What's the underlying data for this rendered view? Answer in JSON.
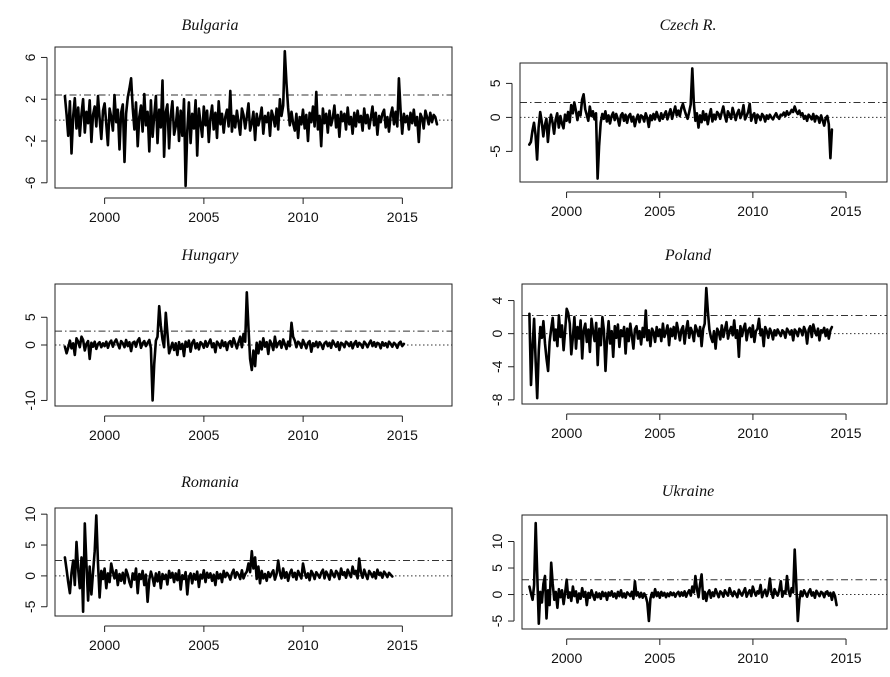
{
  "chart_data": [
    {
      "type": "line",
      "title": "Bulgaria",
      "xticks": [
        2000,
        2005,
        2010,
        2015
      ],
      "yticks": [
        -6,
        -2,
        2,
        6
      ],
      "xlim": [
        1997.5,
        2017.5
      ],
      "ylim": [
        -6.5,
        7
      ],
      "reference_lines": [
        0,
        2.4
      ],
      "x_start": 1998.0,
      "x_step": 0.0833,
      "values": [
        2.3,
        0.5,
        -1.5,
        1.8,
        -3.2,
        0.4,
        2.1,
        -0.8,
        1.2,
        -1.5,
        0.6,
        2.0,
        -1.2,
        0.8,
        -0.3,
        1.9,
        -2.1,
        0.5,
        1.3,
        -0.6,
        2.3,
        0.2,
        -1.8,
        0.9,
        1.6,
        -0.4,
        -2.4,
        1.1,
        0.3,
        -1.0,
        2.4,
        -0.2,
        1.0,
        -2.8,
        0.7,
        1.5,
        -4.0,
        0.6,
        2.2,
        3.0,
        4.0,
        1.2,
        -0.9,
        1.7,
        -2.5,
        0.3,
        1.4,
        -1.1,
        2.5,
        -0.5,
        0.8,
        -3.0,
        1.9,
        -1.6,
        0.4,
        2.3,
        -2.2,
        1.0,
        -0.7,
        3.8,
        -3.5,
        0.8,
        1.5,
        -2.7,
        0.4,
        1.8,
        -1.4,
        -0.6,
        1.2,
        -2.0,
        0.9,
        -1.5,
        2.0,
        -6.3,
        -1.0,
        1.7,
        -2.2,
        0.6,
        -0.8,
        1.9,
        -3.4,
        1.1,
        -0.3,
        -1.6,
        1.3,
        -0.5,
        0.9,
        -2.1,
        0.2,
        1.4,
        -0.9,
        0.7,
        -1.7,
        1.8,
        -0.4,
        0.6,
        -1.2,
        0.3,
        1.0,
        -0.6,
        2.8,
        -1.1,
        0.4,
        -0.7,
        0.9,
        -0.2,
        -1.4,
        1.1,
        0.5,
        -0.8,
        0.3,
        1.6,
        -1.0,
        -0.3,
        0.8,
        -1.9,
        0.6,
        -0.5,
        0.2,
        1.2,
        -1.3,
        0.4,
        -0.2,
        0.7,
        -1.5,
        0.9,
        0.3,
        -0.6,
        1.1,
        -0.9,
        2.0,
        0.4,
        1.4,
        6.6,
        3.5,
        1.2,
        -0.5,
        0.8,
        -0.3,
        -1.0,
        0.6,
        -1.7,
        0.3,
        -0.4,
        1.0,
        -0.8,
        0.5,
        -2.0,
        0.7,
        -0.2,
        1.3,
        -0.6,
        2.7,
        -0.9,
        0.4,
        -2.5,
        1.1,
        -0.3,
        0.6,
        -1.2,
        0.9,
        -0.5,
        0.2,
        1.4,
        -0.7,
        0.5,
        -1.6,
        0.8,
        -0.1,
        0.6,
        -0.9,
        1.2,
        -0.4,
        0.3,
        -1.3,
        0.7,
        -0.6,
        0.9,
        -0.2,
        0.4,
        -1.0,
        1.1,
        -0.3,
        0.5,
        -0.8,
        0.2,
        1.3,
        -0.5,
        0.7,
        -1.4,
        0.4,
        -0.2,
        0.6,
        1.0,
        -0.7,
        0.3,
        -1.1,
        0.5,
        1.2,
        -0.4,
        0.8,
        -0.6,
        4.0,
        0.9,
        -1.3,
        0.6,
        -0.2,
        0.4,
        -0.9,
        0.7,
        -0.3,
        1.0,
        -0.5,
        0.3,
        -2.1,
        0.6,
        0.2,
        -0.8,
        0.9,
        0.3,
        -0.4,
        0.7,
        -0.2,
        0.5,
        0.3,
        -0.4
      ]
    },
    {
      "type": "line",
      "title": "Czech R.",
      "xticks": [
        2000,
        2005,
        2010,
        2015
      ],
      "yticks": [
        -5,
        0,
        5
      ],
      "xlim": [
        1997.5,
        2017.2
      ],
      "ylim": [
        -9.5,
        8
      ],
      "reference_lines": [
        0,
        2.2
      ],
      "x_start": 1998.0,
      "x_step": 0.0833,
      "values": [
        -4.0,
        -3.6,
        -2.0,
        -0.8,
        -2.5,
        -6.2,
        -1.5,
        0.8,
        -0.6,
        -2.8,
        -1.2,
        -0.2,
        -3.6,
        -1.0,
        0.4,
        -0.8,
        -2.4,
        -0.3,
        0.6,
        -1.5,
        0.2,
        -0.9,
        -1.6,
        0.4,
        -0.5,
        0.8,
        -0.7,
        1.8,
        0.6,
        2.2,
        1.0,
        -0.4,
        0.8,
        0.3,
        2.6,
        3.4,
        1.2,
        0.4,
        -0.5,
        1.6,
        0.2,
        0.9,
        -0.3,
        0.6,
        -9.0,
        -4.2,
        -0.8,
        0.5,
        -0.2,
        0.9,
        -0.6,
        0.3,
        -0.9,
        0.2,
        0.7,
        -0.4,
        0.5,
        -0.2,
        -1.2,
        0.3,
        0.6,
        -0.5,
        0.4,
        -0.8,
        0.2,
        0.5,
        -0.6,
        0.1,
        -1.3,
        -0.2,
        0.4,
        -0.7,
        0.3,
        0.1,
        -0.6,
        0.6,
        -0.1,
        -1.4,
        0.3,
        -0.4,
        0.5,
        -0.3,
        0.8,
        0.1,
        -0.5,
        0.6,
        -0.2,
        0.4,
        0.9,
        -0.3,
        0.5,
        1.2,
        -0.2,
        0.7,
        1.6,
        0.3,
        1.0,
        0.2,
        1.4,
        2.0,
        1.1,
        0.4,
        -0.2,
        0.8,
        1.9,
        7.2,
        2.2,
        -0.5,
        0.6,
        -1.5,
        0.3,
        -0.7,
        0.9,
        -0.4,
        0.5,
        -1.0,
        0.2,
        1.2,
        -0.6,
        0.4,
        -0.3,
        0.8,
        0.5,
        -0.2,
        0.7,
        1.6,
        0.3,
        -0.6,
        0.9,
        0.4,
        -0.2,
        1.4,
        0.5,
        -0.4,
        0.6,
        1.1,
        -0.1,
        0.5,
        1.8,
        -0.3,
        0.2,
        0.8,
        2.0,
        -0.5,
        0.3,
        0.6,
        -0.8,
        0.4,
        0.1,
        -0.4,
        0.5,
        0.2,
        -0.6,
        0.3,
        -0.2,
        0.4,
        0.0,
        -0.3,
        0.2,
        0.6,
        0.1,
        -0.2,
        0.4,
        0.3,
        0.7,
        0.2,
        0.9,
        0.4,
        0.6,
        1.1,
        0.8,
        1.6,
        0.9,
        0.5,
        1.0,
        0.3,
        0.6,
        -0.2,
        0.2,
        -0.5,
        0.4,
        0.1,
        -0.3,
        0.5,
        -0.6,
        0.2,
        0.0,
        -0.8,
        0.3,
        -0.4,
        -1.2,
        -0.1,
        0.2,
        -1.0,
        -6.0,
        -1.8
      ]
    },
    {
      "type": "line",
      "title": "Hungary",
      "xticks": [
        2000,
        2005,
        2010,
        2015
      ],
      "yticks": [
        -10,
        0,
        5
      ],
      "xlim": [
        1997.5,
        2017.5
      ],
      "ylim": [
        -11,
        11
      ],
      "reference_lines": [
        0,
        2.5
      ],
      "x_start": 1998.0,
      "x_step": 0.0833,
      "values": [
        -0.3,
        -1.5,
        -0.5,
        0.8,
        -0.6,
        0.3,
        -1.8,
        1.2,
        0.6,
        -0.4,
        1.5,
        0.9,
        -1.0,
        0.2,
        0.7,
        -2.5,
        0.4,
        -0.3,
        0.6,
        -0.7,
        0.2,
        0.5,
        -0.4,
        0.3,
        -0.2,
        0.6,
        -0.5,
        0.4,
        0.8,
        -0.3,
        0.5,
        1.0,
        0.2,
        -0.6,
        0.7,
        0.3,
        -0.4,
        0.9,
        -0.2,
        0.5,
        -1.1,
        0.4,
        0.6,
        -0.3,
        0.8,
        1.2,
        -0.5,
        0.3,
        0.7,
        -0.2,
        0.4,
        0.9,
        -0.6,
        -10.0,
        -3.5,
        0.8,
        1.5,
        7.0,
        3.5,
        1.0,
        -0.4,
        5.8,
        2.2,
        -1.5,
        -0.6,
        0.4,
        -0.9,
        0.3,
        -1.8,
        0.5,
        -0.7,
        0.2,
        -2.0,
        0.6,
        -0.3,
        0.8,
        -1.2,
        0.4,
        0.9,
        -0.6,
        0.3,
        -0.8,
        0.5,
        0.2,
        -0.5,
        0.7,
        -0.3,
        0.4,
        1.0,
        -0.4,
        0.3,
        -1.3,
        0.6,
        0.2,
        -0.5,
        0.8,
        -0.2,
        0.5,
        -0.9,
        0.4,
        0.7,
        -0.3,
        1.2,
        0.3,
        -0.6,
        0.5,
        1.5,
        -0.4,
        2.0,
        0.6,
        9.5,
        3.0,
        -2.5,
        -4.5,
        -1.0,
        -3.8,
        0.4,
        -1.5,
        0.6,
        -0.8,
        1.2,
        -0.3,
        0.5,
        -1.6,
        0.8,
        0.2,
        -0.9,
        1.5,
        -0.4,
        0.3,
        0.7,
        -0.5,
        1.0,
        0.2,
        -0.7,
        0.6,
        -0.2,
        4.0,
        1.5,
        0.8,
        -0.4,
        0.6,
        0.3,
        -0.5,
        0.9,
        0.2,
        -0.6,
        0.4,
        0.7,
        -1.2,
        0.3,
        -0.2,
        0.6,
        -0.4,
        0.5,
        0.1,
        -0.7,
        0.3,
        0.6,
        -0.2,
        0.4,
        -0.5,
        0.8,
        0.2,
        -0.3,
        0.5,
        -0.9,
        0.4,
        0.2,
        -0.4,
        0.6,
        0.3,
        -0.2,
        0.5,
        -0.6,
        0.3,
        0.7,
        -0.3,
        0.4,
        0.1,
        -0.5,
        0.6,
        0.2,
        -0.4,
        0.3,
        0.8,
        -0.2,
        0.5,
        -0.3,
        0.4,
        0.2,
        -0.6,
        0.5,
        -0.1,
        0.3,
        -0.4,
        0.6,
        0.2,
        -0.3,
        0.4,
        0.1,
        -0.5,
        0.3,
        0.6,
        -0.2,
        0.2
      ]
    },
    {
      "type": "line",
      "title": "Poland",
      "xticks": [
        2000,
        2005,
        2010,
        2015
      ],
      "yticks": [
        -8,
        -4,
        0,
        4
      ],
      "xlim": [
        1997.6,
        2017.2
      ],
      "ylim": [
        -8.5,
        6
      ],
      "reference_lines": [
        0,
        2.2
      ],
      "x_start": 1998.0,
      "x_step": 0.0833,
      "values": [
        2.4,
        -6.2,
        -1.5,
        1.8,
        -3.5,
        -7.8,
        -2.0,
        0.8,
        -0.5,
        1.5,
        -1.2,
        -3.0,
        -4.5,
        -1.0,
        0.6,
        1.9,
        -0.8,
        0.5,
        -1.5,
        2.2,
        -0.4,
        1.0,
        -2.0,
        0.3,
        3.0,
        2.5,
        1.2,
        -2.5,
        -0.4,
        2.0,
        -1.8,
        0.8,
        -0.6,
        1.6,
        -3.0,
        0.4,
        1.2,
        -1.0,
        0.5,
        -2.2,
        1.8,
        0.2,
        -0.9,
        1.3,
        -3.8,
        0.6,
        -1.4,
        2.0,
        0.4,
        -4.5,
        -0.8,
        1.5,
        -1.2,
        0.3,
        -2.8,
        0.9,
        -0.5,
        1.1,
        -1.6,
        0.4,
        -0.3,
        0.8,
        -2.4,
        0.6,
        -0.9,
        1.2,
        -0.2,
        -1.8,
        0.5,
        0.9,
        -0.6,
        0.3,
        -1.3,
        0.7,
        -0.4,
        2.8,
        -0.8,
        0.4,
        -1.5,
        0.6,
        0.2,
        -1.0,
        0.8,
        -0.3,
        0.5,
        -0.9,
        1.2,
        -0.4,
        0.2,
        1.0,
        -1.4,
        0.6,
        -0.3,
        0.8,
        -0.6,
        1.3,
        0.3,
        -0.8,
        0.5,
        0.9,
        -1.2,
        0.4,
        1.5,
        -0.5,
        0.7,
        0.2,
        -0.9,
        1.0,
        0.4,
        -0.3,
        0.8,
        -1.5,
        0.6,
        1.2,
        5.5,
        2.8,
        0.5,
        -0.4,
        -1.0,
        0.3,
        -1.8,
        0.6,
        0.2,
        -0.7,
        1.0,
        -0.4,
        0.5,
        1.4,
        -0.6,
        0.3,
        0.8,
        -0.2,
        1.6,
        -0.5,
        0.4,
        -2.8,
        0.9,
        -0.3,
        0.6,
        1.2,
        -0.8,
        0.4,
        0.7,
        -0.4,
        1.0,
        -1.0,
        0.3,
        0.6,
        1.8,
        -0.2,
        0.5,
        -1.5,
        0.8,
        0.3,
        -0.5,
        0.6,
        0.2,
        -0.7,
        0.4,
        -0.2,
        0.5,
        0.1,
        -0.3,
        0.4,
        0.2,
        -0.5,
        0.6,
        0.3,
        -0.1,
        0.4,
        -0.8,
        0.5,
        0.2,
        -0.3,
        0.6,
        0.4,
        -0.2,
        0.8,
        0.3,
        -1.2,
        0.5,
        0.9,
        -0.4,
        1.1,
        0.3,
        -0.2,
        0.6,
        -0.8,
        0.4,
        0.2,
        0.7,
        -0.3,
        0.5,
        -0.6,
        0.4,
        0.8
      ]
    },
    {
      "type": "line",
      "title": "Romania",
      "xticks": [
        2000,
        2005,
        2010,
        2015
      ],
      "yticks": [
        -5,
        0,
        5,
        10
      ],
      "xlim": [
        1997.5,
        2017.5
      ],
      "ylim": [
        -6.5,
        11
      ],
      "reference_lines": [
        0,
        2.5
      ],
      "x_start": 1998.0,
      "x_step": 0.0833,
      "values": [
        3.0,
        1.0,
        -1.0,
        -2.8,
        0.5,
        2.5,
        -1.5,
        5.5,
        1.0,
        -2.0,
        3.0,
        -5.8,
        8.5,
        2.0,
        -4.0,
        1.5,
        -3.0,
        0.5,
        4.0,
        9.8,
        2.0,
        -3.5,
        0.8,
        -0.5,
        1.2,
        -2.0,
        0.4,
        -1.0,
        2.0,
        0.6,
        -0.4,
        0.9,
        -1.5,
        0.3,
        -0.8,
        0.5,
        -1.2,
        1.0,
        0.2,
        -1.0,
        -1.8,
        0.4,
        -0.6,
        1.2,
        -2.8,
        0.3,
        -0.5,
        0.8,
        -1.5,
        0.2,
        -4.2,
        -0.6,
        0.7,
        -0.3,
        -1.6,
        0.4,
        -0.9,
        0.6,
        -2.0,
        0.3,
        -0.5,
        0.2,
        -1.4,
        0.8,
        -0.3,
        0.5,
        -1.0,
        0.4,
        -0.7,
        0.9,
        -2.2,
        0.1,
        -0.5,
        0.6,
        -3.0,
        -0.2,
        0.4,
        -1.2,
        0.3,
        -0.6,
        0.7,
        -1.8,
        0.2,
        -0.4,
        0.9,
        -1.0,
        0.5,
        -0.3,
        0.4,
        -0.8,
        0.2,
        -1.5,
        0.6,
        -0.4,
        0.3,
        -1.0,
        0.8,
        -0.2,
        0.5,
        0.1,
        -0.6,
        0.4,
        1.0,
        -0.3,
        0.6,
        0.2,
        -0.5,
        0.9,
        -0.4,
        0.3,
        0.7,
        2.0,
        0.6,
        4.0,
        1.2,
        3.0,
        -0.5,
        1.5,
        -1.2,
        0.8,
        -0.4,
        0.3,
        -0.8,
        0.6,
        -0.2,
        0.4,
        0.9,
        -0.6,
        0.3,
        2.5,
        0.5,
        -0.4,
        1.2,
        -0.3,
        0.6,
        -0.8,
        0.4,
        1.0,
        -0.2,
        0.5,
        -0.6,
        0.8,
        0.2,
        -0.4,
        2.0,
        0.6,
        -0.3,
        0.4,
        -0.7,
        0.8,
        0.3,
        -0.5,
        0.6,
        0.2,
        -0.3,
        0.5,
        1.0,
        -0.4,
        0.7,
        0.2,
        -0.6,
        0.9,
        0.3,
        -0.2,
        0.8,
        0.4,
        -0.5,
        1.2,
        0.2,
        0.6,
        -0.3,
        1.0,
        0.4,
        -0.2,
        1.5,
        0.3,
        0.8,
        -0.4,
        2.8,
        0.6,
        -0.3,
        1.0,
        0.2,
        -0.5,
        0.8,
        0.4,
        -0.2,
        0.6,
        -0.4,
        1.0,
        0.2,
        0.5,
        -0.3,
        0.7,
        0.3,
        -0.2,
        0.5,
        0.2,
        -0.1
      ]
    },
    {
      "type": "line",
      "title": "Ukraine",
      "xticks": [
        2000,
        2005,
        2010,
        2015
      ],
      "yticks": [
        -5,
        0,
        5,
        10
      ],
      "xlim": [
        1997.6,
        2017.2
      ],
      "ylim": [
        -6.5,
        15
      ],
      "reference_lines": [
        0,
        2.8
      ],
      "x_start": 1998.0,
      "x_step": 0.0833,
      "values": [
        1.5,
        0.2,
        -1.0,
        1.8,
        13.5,
        4.0,
        -5.5,
        0.5,
        -1.5,
        2.0,
        3.5,
        -4.5,
        0.8,
        -2.0,
        6.0,
        2.0,
        -1.0,
        0.5,
        -2.5,
        1.0,
        -0.5,
        0.8,
        -1.8,
        0.3,
        2.8,
        -0.6,
        0.4,
        -1.2,
        1.5,
        -0.3,
        0.6,
        -1.5,
        0.2,
        -0.8,
        1.2,
        -0.4,
        0.5,
        -2.0,
        0.3,
        -0.6,
        0.8,
        -0.2,
        -1.0,
        0.4,
        -0.5,
        0.2,
        -0.8,
        0.5,
        -0.3,
        0.3,
        -1.0,
        0.4,
        -0.2,
        0.6,
        -0.4,
        0.2,
        -0.7,
        0.5,
        -0.3,
        0.8,
        -0.5,
        0.2,
        -0.6,
        0.4,
        0.1,
        -0.3,
        0.5,
        -0.8,
        2.5,
        -0.2,
        0.4,
        -0.5,
        0.3,
        -0.6,
        0.2,
        -0.4,
        -1.5,
        -5.0,
        -0.8,
        0.3,
        -0.5,
        1.0,
        -0.3,
        0.4,
        -0.6,
        0.5,
        -0.2,
        0.3,
        -0.5,
        0.2,
        -0.3,
        0.4,
        -0.1,
        0.3,
        -0.4,
        0.2,
        0.5,
        -0.3,
        0.4,
        -0.2,
        0.6,
        -0.4,
        0.3,
        0.8,
        -0.2,
        1.5,
        0.4,
        3.5,
        1.0,
        -0.5,
        2.0,
        3.8,
        -0.8,
        0.5,
        -1.2,
        0.3,
        0.8,
        -0.6,
        0.4,
        -0.3,
        1.0,
        0.2,
        -0.5,
        0.6,
        0.3,
        -0.4,
        0.8,
        0.2,
        -0.2,
        1.2,
        0.4,
        -0.3,
        0.6,
        0.1,
        -0.5,
        0.9,
        0.3,
        -0.2,
        0.5,
        1.2,
        -0.4,
        0.3,
        0.8,
        -0.3,
        1.5,
        0.5,
        -0.2,
        0.6,
        0.3,
        1.8,
        -0.5,
        0.4,
        0.9,
        -0.3,
        0.6,
        3.0,
        0.4,
        -0.6,
        1.0,
        0.3,
        -0.2,
        0.8,
        2.5,
        -0.4,
        0.6,
        0.2,
        3.5,
        0.8,
        -0.3,
        1.2,
        0.4,
        8.5,
        2.0,
        -5.0,
        -1.0,
        0.6,
        -0.3,
        0.8,
        0.2,
        -0.4,
        0.5,
        1.0,
        -0.2,
        0.4,
        -0.6,
        0.7,
        0.2,
        -0.3,
        0.5,
        0.3,
        -0.5,
        0.4,
        0.6,
        -0.2,
        0.3,
        -1.0,
        0.4,
        -0.3,
        -2.0
      ]
    }
  ]
}
